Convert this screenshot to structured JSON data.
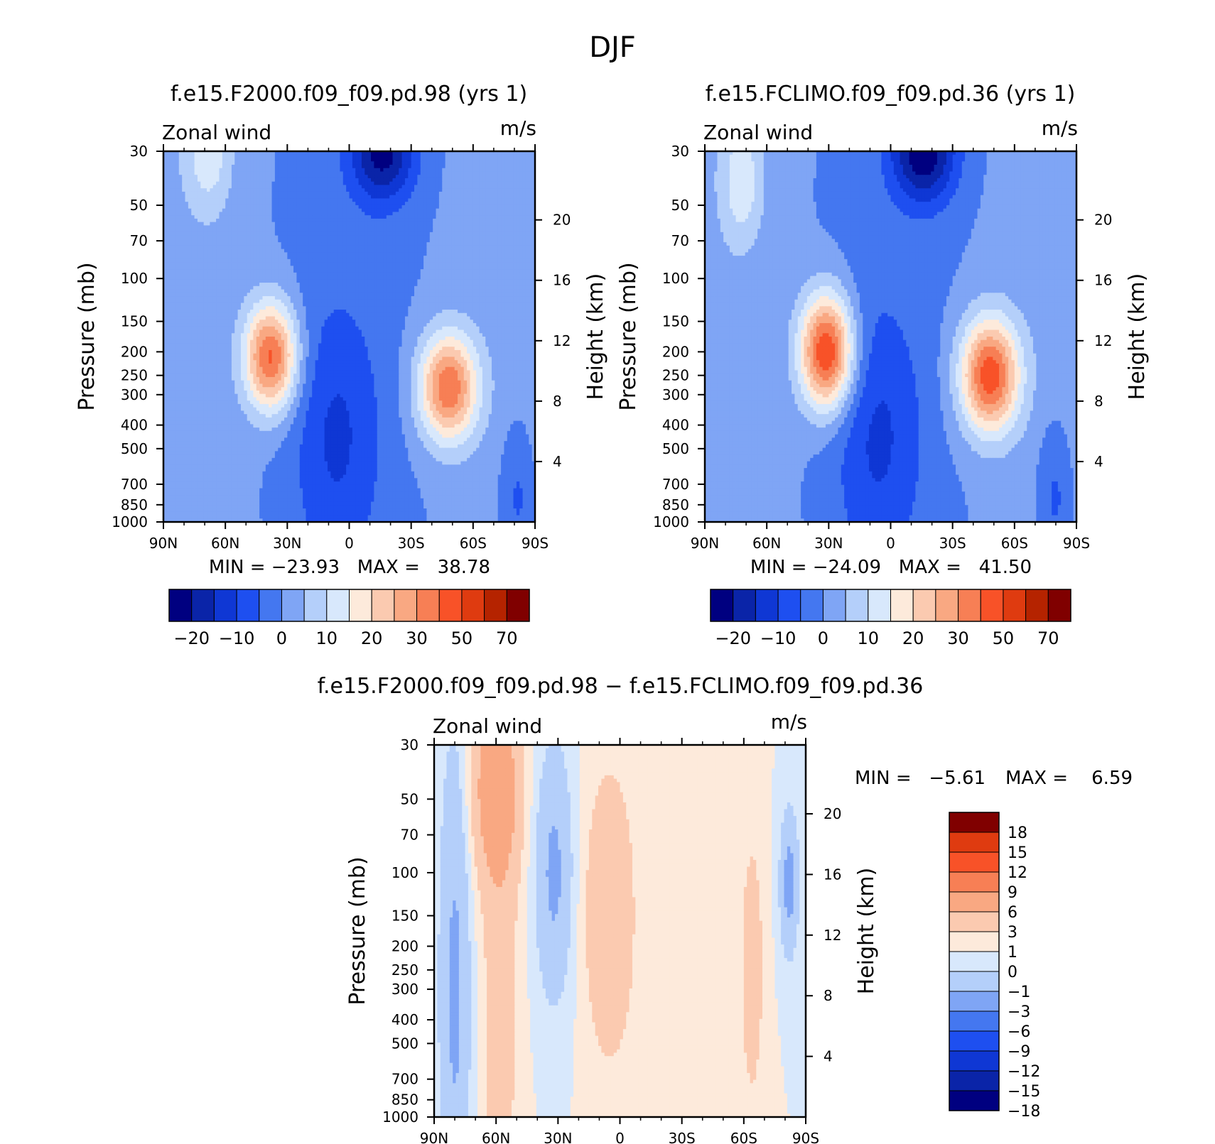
{
  "figure": {
    "title": "DJF"
  },
  "chart_data": [
    {
      "id": "panel_a",
      "type": "heatmap",
      "subtitle": "f.e15.F2000.f09_f09.pd.98 (yrs 1)",
      "variable": "Zonal wind",
      "units": "m/s",
      "ylabel": "Pressure (mb)",
      "ylabel_right": "Height (km)",
      "x_ticks": [
        "90N",
        "60N",
        "30N",
        "0",
        "30S",
        "60S",
        "90S"
      ],
      "x_values": [
        90,
        60,
        30,
        0,
        -30,
        -60,
        -90
      ],
      "y_ticks": [
        30,
        50,
        70,
        100,
        150,
        200,
        250,
        300,
        400,
        500,
        700,
        850,
        1000
      ],
      "height_ticks": [
        4,
        8,
        12,
        16,
        20
      ],
      "stats": "MIN = −23.93   MAX =   38.78",
      "min": -23.93,
      "max": 38.78,
      "cmap": "blue-red",
      "levels": [
        -25,
        -20,
        -15,
        -10,
        -5,
        0,
        5,
        10,
        15,
        20,
        25,
        30,
        40,
        50,
        60,
        70
      ],
      "colorbar_labels": [
        "−20",
        "−10",
        "0",
        "10",
        "20",
        "30",
        "50",
        "70"
      ],
      "features": [
        {
          "lat": 38,
          "p": 210,
          "value": 36,
          "wlat": 9,
          "wlog": 0.36
        },
        {
          "lat": -48,
          "p": 280,
          "value": 34,
          "wlat": 10,
          "wlog": 0.36
        },
        {
          "lat": 68,
          "p": 30,
          "value": 12,
          "wlat": 8,
          "wlog": 0.42
        },
        {
          "lat": -16,
          "p": 30,
          "value": -22,
          "wlat": 11,
          "wlog": 0.34
        },
        {
          "lat": 6,
          "p": 450,
          "value": -10,
          "wlat": 15,
          "wlog": 0.9
        },
        {
          "lat": -82,
          "p": 800,
          "value": -8,
          "wlat": 6,
          "wlog": 0.5
        }
      ]
    },
    {
      "id": "panel_b",
      "type": "heatmap",
      "subtitle": "f.e15.FCLIMO.f09_f09.pd.36 (yrs 1)",
      "variable": "Zonal wind",
      "units": "m/s",
      "ylabel": "Pressure (mb)",
      "ylabel_right": "Height (km)",
      "x_ticks": [
        "90N",
        "60N",
        "30N",
        "0",
        "30S",
        "60S",
        "90S"
      ],
      "x_values": [
        90,
        60,
        30,
        0,
        -30,
        -60,
        -90
      ],
      "y_ticks": [
        30,
        50,
        70,
        100,
        150,
        200,
        250,
        300,
        400,
        500,
        700,
        850,
        1000
      ],
      "height_ticks": [
        4,
        8,
        12,
        16,
        20
      ],
      "stats": "MIN = −24.09   MAX =   41.50",
      "min": -24.09,
      "max": 41.5,
      "cmap": "blue-red",
      "levels": [
        -25,
        -20,
        -15,
        -10,
        -5,
        0,
        5,
        10,
        15,
        20,
        25,
        30,
        40,
        50,
        60,
        70
      ],
      "colorbar_labels": [
        "−20",
        "−10",
        "0",
        "10",
        "20",
        "30",
        "50",
        "70"
      ],
      "features": [
        {
          "lat": 31,
          "p": 200,
          "value": 41,
          "wlat": 9,
          "wlog": 0.38
        },
        {
          "lat": -48,
          "p": 250,
          "value": 38,
          "wlat": 10,
          "wlog": 0.38
        },
        {
          "lat": 72,
          "p": 40,
          "value": 12,
          "wlat": 7,
          "wlog": 0.42
        },
        {
          "lat": -16,
          "p": 30,
          "value": -24,
          "wlat": 11,
          "wlog": 0.34
        },
        {
          "lat": 6,
          "p": 450,
          "value": -10,
          "wlat": 15,
          "wlog": 0.9
        },
        {
          "lat": -80,
          "p": 800,
          "value": -8,
          "wlat": 6,
          "wlog": 0.5
        }
      ]
    },
    {
      "id": "panel_diff",
      "type": "heatmap",
      "subtitle": "f.e15.F2000.f09_f09.pd.98 − f.e15.FCLIMO.f09_f09.pd.36",
      "variable": "Zonal wind",
      "units": "m/s",
      "ylabel": "Pressure (mb)",
      "ylabel_right": "Height (km)",
      "x_ticks": [
        "90N",
        "60N",
        "30N",
        "0",
        "30S",
        "60S",
        "90S"
      ],
      "x_values": [
        90,
        60,
        30,
        0,
        -30,
        -60,
        -90
      ],
      "y_ticks": [
        30,
        50,
        70,
        100,
        150,
        200,
        250,
        300,
        400,
        500,
        700,
        850,
        1000
      ],
      "height_ticks": [
        4,
        8,
        12,
        16,
        20
      ],
      "stats_min": "MIN =   −5.61",
      "stats_max": "MAX =    6.59",
      "min": -5.61,
      "max": 6.59,
      "cmap": "blue-red",
      "levels": [
        -18,
        -15,
        -12,
        -9,
        -6,
        -3,
        -1,
        0,
        1,
        3,
        6,
        9,
        12,
        15,
        18
      ],
      "colorbar_labels": [
        "18",
        "15",
        "12",
        "9",
        "6",
        "3",
        "1",
        "0",
        "−1",
        "−3",
        "−6",
        "−9",
        "−12",
        "−15",
        "−18"
      ],
      "features": [
        {
          "lat": 60,
          "p": 45,
          "value": 5,
          "wlat": 8,
          "wlog": 0.6
        },
        {
          "lat": 58,
          "p": 350,
          "value": 2,
          "wlat": 6,
          "wlog": 1.6
        },
        {
          "lat": 5,
          "p": 150,
          "value": 3,
          "wlat": 8,
          "wlog": 0.9
        },
        {
          "lat": -64,
          "p": 250,
          "value": 2,
          "wlat": 4,
          "wlog": 0.9
        },
        {
          "lat": 80,
          "p": 300,
          "value": -3.5,
          "wlat": 5,
          "wlog": 1.6
        },
        {
          "lat": 32,
          "p": 100,
          "value": -3.5,
          "wlat": 6,
          "wlog": 0.8
        },
        {
          "lat": -82,
          "p": 110,
          "value": -4,
          "wlat": 3,
          "wlog": 0.45
        }
      ]
    }
  ]
}
